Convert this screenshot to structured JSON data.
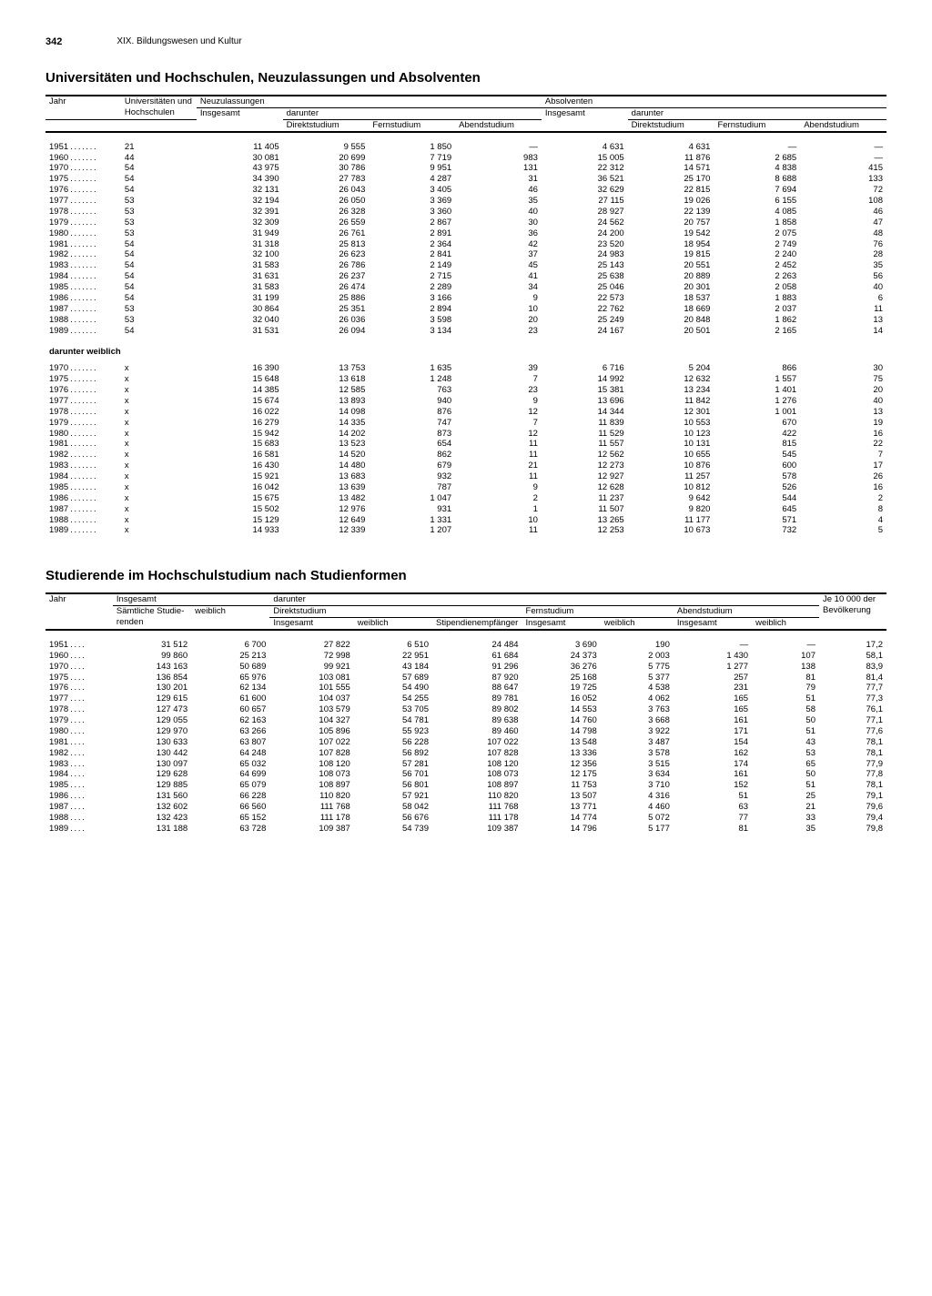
{
  "page": {
    "number": "342",
    "chapter": "XIX. Bildungswesen und Kultur"
  },
  "section1": {
    "title": "Universitäten und Hochschulen, Neuzulassungen und Absolventen",
    "headers": {
      "jahr": "Jahr",
      "uni": "Universitäten und Hoch­schulen",
      "neu": "Neuzulassungen",
      "abs": "Absolventen",
      "insg": "Insgesamt",
      "darunter": "darunter",
      "direkt": "Direkt­studium",
      "fern": "Fern­studium",
      "abend": "Abend­studium"
    },
    "sub_label": "darunter weiblich",
    "rows": [
      {
        "y": "1951",
        "u": "21",
        "ni": "11 405",
        "nd": "9 555",
        "nf": "1 850",
        "na": "—",
        "ai": "4 631",
        "ad": "4 631",
        "af": "—",
        "aa": "—"
      },
      {
        "y": "1960",
        "u": "44",
        "ni": "30 081",
        "nd": "20 699",
        "nf": "7 719",
        "na": "983",
        "ai": "15 005",
        "ad": "11 876",
        "af": "2 685",
        "aa": "—"
      },
      {
        "y": "1970",
        "u": "54",
        "ni": "43 975",
        "nd": "30 786",
        "nf": "9 951",
        "na": "131",
        "ai": "22 312",
        "ad": "14 571",
        "af": "4 838",
        "aa": "415"
      },
      {
        "y": "1975",
        "u": "54",
        "ni": "34 390",
        "nd": "27 783",
        "nf": "4 287",
        "na": "31",
        "ai": "36 521",
        "ad": "25 170",
        "af": "8 688",
        "aa": "133"
      },
      {
        "y": "1976",
        "u": "54",
        "ni": "32 131",
        "nd": "26 043",
        "nf": "3 405",
        "na": "46",
        "ai": "32 629",
        "ad": "22 815",
        "af": "7 694",
        "aa": "72"
      },
      {
        "y": "1977",
        "u": "53",
        "ni": "32 194",
        "nd": "26 050",
        "nf": "3 369",
        "na": "35",
        "ai": "27 115",
        "ad": "19 026",
        "af": "6 155",
        "aa": "108"
      },
      {
        "y": "1978",
        "u": "53",
        "ni": "32 391",
        "nd": "26 328",
        "nf": "3 360",
        "na": "40",
        "ai": "28 927",
        "ad": "22 139",
        "af": "4 085",
        "aa": "46"
      },
      {
        "y": "1979",
        "u": "53",
        "ni": "32 309",
        "nd": "26 559",
        "nf": "2 867",
        "na": "30",
        "ai": "24 562",
        "ad": "20 757",
        "af": "1 858",
        "aa": "47"
      },
      {
        "y": "1980",
        "u": "53",
        "ni": "31 949",
        "nd": "26 761",
        "nf": "2 891",
        "na": "36",
        "ai": "24 200",
        "ad": "19 542",
        "af": "2 075",
        "aa": "48"
      },
      {
        "y": "1981",
        "u": "54",
        "ni": "31 318",
        "nd": "25 813",
        "nf": "2 364",
        "na": "42",
        "ai": "23 520",
        "ad": "18 954",
        "af": "2 749",
        "aa": "76"
      },
      {
        "y": "1982",
        "u": "54",
        "ni": "32 100",
        "nd": "26 623",
        "nf": "2 841",
        "na": "37",
        "ai": "24 983",
        "ad": "19 815",
        "af": "2 240",
        "aa": "28"
      },
      {
        "y": "1983",
        "u": "54",
        "ni": "31 583",
        "nd": "26 786",
        "nf": "2 149",
        "na": "45",
        "ai": "25 143",
        "ad": "20 551",
        "af": "2 452",
        "aa": "35"
      },
      {
        "y": "1984",
        "u": "54",
        "ni": "31 631",
        "nd": "26 237",
        "nf": "2 715",
        "na": "41",
        "ai": "25 638",
        "ad": "20 889",
        "af": "2 263",
        "aa": "56"
      },
      {
        "y": "1985",
        "u": "54",
        "ni": "31 583",
        "nd": "26 474",
        "nf": "2 289",
        "na": "34",
        "ai": "25 046",
        "ad": "20 301",
        "af": "2 058",
        "aa": "40"
      },
      {
        "y": "1986",
        "u": "54",
        "ni": "31 199",
        "nd": "25 886",
        "nf": "3 166",
        "na": "9",
        "ai": "22 573",
        "ad": "18 537",
        "af": "1 883",
        "aa": "6"
      },
      {
        "y": "1987",
        "u": "53",
        "ni": "30 864",
        "nd": "25 351",
        "nf": "2 894",
        "na": "10",
        "ai": "22 762",
        "ad": "18 669",
        "af": "2 037",
        "aa": "11"
      },
      {
        "y": "1988",
        "u": "53",
        "ni": "32 040",
        "nd": "26 036",
        "nf": "3 598",
        "na": "20",
        "ai": "25 249",
        "ad": "20 848",
        "af": "1 862",
        "aa": "13"
      },
      {
        "y": "1989",
        "u": "54",
        "ni": "31 531",
        "nd": "26 094",
        "nf": "3 134",
        "na": "23",
        "ai": "24 167",
        "ad": "20 501",
        "af": "2 165",
        "aa": "14"
      }
    ],
    "rows_w": [
      {
        "y": "1970",
        "u": "x",
        "ni": "16 390",
        "nd": "13 753",
        "nf": "1 635",
        "na": "39",
        "ai": "6 716",
        "ad": "5 204",
        "af": "866",
        "aa": "30"
      },
      {
        "y": "1975",
        "u": "x",
        "ni": "15 648",
        "nd": "13 618",
        "nf": "1 248",
        "na": "7",
        "ai": "14 992",
        "ad": "12 632",
        "af": "1 557",
        "aa": "75"
      },
      {
        "y": "1976",
        "u": "x",
        "ni": "14 385",
        "nd": "12 585",
        "nf": "763",
        "na": "23",
        "ai": "15 381",
        "ad": "13 234",
        "af": "1 401",
        "aa": "20"
      },
      {
        "y": "1977",
        "u": "x",
        "ni": "15 674",
        "nd": "13 893",
        "nf": "940",
        "na": "9",
        "ai": "13 696",
        "ad": "11 842",
        "af": "1 276",
        "aa": "40"
      },
      {
        "y": "1978",
        "u": "x",
        "ni": "16 022",
        "nd": "14 098",
        "nf": "876",
        "na": "12",
        "ai": "14 344",
        "ad": "12 301",
        "af": "1 001",
        "aa": "13"
      },
      {
        "y": "1979",
        "u": "x",
        "ni": "16 279",
        "nd": "14 335",
        "nf": "747",
        "na": "7",
        "ai": "11 839",
        "ad": "10 553",
        "af": "670",
        "aa": "19"
      },
      {
        "y": "1980",
        "u": "x",
        "ni": "15 942",
        "nd": "14 202",
        "nf": "873",
        "na": "12",
        "ai": "11 529",
        "ad": "10 123",
        "af": "422",
        "aa": "16"
      },
      {
        "y": "1981",
        "u": "x",
        "ni": "15 683",
        "nd": "13 523",
        "nf": "654",
        "na": "11",
        "ai": "11 557",
        "ad": "10 131",
        "af": "815",
        "aa": "22"
      },
      {
        "y": "1982",
        "u": "x",
        "ni": "16 581",
        "nd": "14 520",
        "nf": "862",
        "na": "11",
        "ai": "12 562",
        "ad": "10 655",
        "af": "545",
        "aa": "7"
      },
      {
        "y": "1983",
        "u": "x",
        "ni": "16 430",
        "nd": "14 480",
        "nf": "679",
        "na": "21",
        "ai": "12 273",
        "ad": "10 876",
        "af": "600",
        "aa": "17"
      },
      {
        "y": "1984",
        "u": "x",
        "ni": "15 921",
        "nd": "13 683",
        "nf": "932",
        "na": "11",
        "ai": "12 927",
        "ad": "11 257",
        "af": "578",
        "aa": "26"
      },
      {
        "y": "1985",
        "u": "x",
        "ni": "16 042",
        "nd": "13 639",
        "nf": "787",
        "na": "9",
        "ai": "12 628",
        "ad": "10 812",
        "af": "526",
        "aa": "16"
      },
      {
        "y": "1986",
        "u": "x",
        "ni": "15 675",
        "nd": "13 482",
        "nf": "1 047",
        "na": "2",
        "ai": "11 237",
        "ad": "9 642",
        "af": "544",
        "aa": "2"
      },
      {
        "y": "1987",
        "u": "x",
        "ni": "15 502",
        "nd": "12 976",
        "nf": "931",
        "na": "1",
        "ai": "11 507",
        "ad": "9 820",
        "af": "645",
        "aa": "8"
      },
      {
        "y": "1988",
        "u": "x",
        "ni": "15 129",
        "nd": "12 649",
        "nf": "1 331",
        "na": "10",
        "ai": "13 265",
        "ad": "11 177",
        "af": "571",
        "aa": "4"
      },
      {
        "y": "1989",
        "u": "x",
        "ni": "14 933",
        "nd": "12 339",
        "nf": "1 207",
        "na": "11",
        "ai": "12 253",
        "ad": "10 673",
        "af": "732",
        "aa": "5"
      }
    ]
  },
  "section2": {
    "title": "Studierende im Hochschulstudium nach Studienformen",
    "headers": {
      "jahr": "Jahr",
      "insg": "Insgesamt",
      "darunter": "darunter",
      "samt": "Sämtliche Studie­renden",
      "weib": "weiblich",
      "direkt": "Direktstudium",
      "fern": "Fernstudium",
      "abend": "Abendstudium",
      "stip": "Stipendien­empfänger",
      "je10k": "Je 10 000 der Bevöl­kerung"
    },
    "rows": [
      {
        "y": "1951",
        "t": "31 512",
        "tw": "6 700",
        "di": "27 822",
        "dw": "6 510",
        "ds": "24 484",
        "fi": "3 690",
        "fw": "190",
        "ai": "—",
        "aw": "—",
        "p": "17,2"
      },
      {
        "y": "1960",
        "t": "99 860",
        "tw": "25 213",
        "di": "72 998",
        "dw": "22 951",
        "ds": "61 684",
        "fi": "24 373",
        "fw": "2 003",
        "ai": "1 430",
        "aw": "107",
        "p": "58,1"
      },
      {
        "y": "1970",
        "t": "143 163",
        "tw": "50 689",
        "di": "99 921",
        "dw": "43 184",
        "ds": "91 296",
        "fi": "36 276",
        "fw": "5 775",
        "ai": "1 277",
        "aw": "138",
        "p": "83,9"
      },
      {
        "y": "1975",
        "t": "136 854",
        "tw": "65 976",
        "di": "103 081",
        "dw": "57 689",
        "ds": "87 920",
        "fi": "25 168",
        "fw": "5 377",
        "ai": "257",
        "aw": "81",
        "p": "81,4"
      },
      {
        "y": "1976",
        "t": "130 201",
        "tw": "62 134",
        "di": "101 555",
        "dw": "54 490",
        "ds": "88 647",
        "fi": "19 725",
        "fw": "4 538",
        "ai": "231",
        "aw": "79",
        "p": "77,7"
      },
      {
        "y": "1977",
        "t": "129 615",
        "tw": "61 600",
        "di": "104 037",
        "dw": "54 255",
        "ds": "89 781",
        "fi": "16 052",
        "fw": "4 062",
        "ai": "165",
        "aw": "51",
        "p": "77,3"
      },
      {
        "y": "1978",
        "t": "127 473",
        "tw": "60 657",
        "di": "103 579",
        "dw": "53 705",
        "ds": "89 802",
        "fi": "14 553",
        "fw": "3 763",
        "ai": "165",
        "aw": "58",
        "p": "76,1"
      },
      {
        "y": "1979",
        "t": "129 055",
        "tw": "62 163",
        "di": "104 327",
        "dw": "54 781",
        "ds": "89 638",
        "fi": "14 760",
        "fw": "3 668",
        "ai": "161",
        "aw": "50",
        "p": "77,1"
      },
      {
        "y": "1980",
        "t": "129 970",
        "tw": "63 266",
        "di": "105 896",
        "dw": "55 923",
        "ds": "89 460",
        "fi": "14 798",
        "fw": "3 922",
        "ai": "171",
        "aw": "51",
        "p": "77,6"
      },
      {
        "y": "1981",
        "t": "130 633",
        "tw": "63 807",
        "di": "107 022",
        "dw": "56 228",
        "ds": "107 022",
        "fi": "13 548",
        "fw": "3 487",
        "ai": "154",
        "aw": "43",
        "p": "78,1"
      },
      {
        "y": "1982",
        "t": "130 442",
        "tw": "64 248",
        "di": "107 828",
        "dw": "56 892",
        "ds": "107 828",
        "fi": "13 336",
        "fw": "3 578",
        "ai": "162",
        "aw": "53",
        "p": "78,1"
      },
      {
        "y": "1983",
        "t": "130 097",
        "tw": "65 032",
        "di": "108 120",
        "dw": "57 281",
        "ds": "108 120",
        "fi": "12 356",
        "fw": "3 515",
        "ai": "174",
        "aw": "65",
        "p": "77,9"
      },
      {
        "y": "1984",
        "t": "129 628",
        "tw": "64 699",
        "di": "108 073",
        "dw": "56 701",
        "ds": "108 073",
        "fi": "12 175",
        "fw": "3 634",
        "ai": "161",
        "aw": "50",
        "p": "77,8"
      },
      {
        "y": "1985",
        "t": "129 885",
        "tw": "65 079",
        "di": "108 897",
        "dw": "56 801",
        "ds": "108 897",
        "fi": "11 753",
        "fw": "3 710",
        "ai": "152",
        "aw": "51",
        "p": "78,1"
      },
      {
        "y": "1986",
        "t": "131 560",
        "tw": "66 228",
        "di": "110 820",
        "dw": "57 921",
        "ds": "110 820",
        "fi": "13 507",
        "fw": "4 316",
        "ai": "51",
        "aw": "25",
        "p": "79,1"
      },
      {
        "y": "1987",
        "t": "132 602",
        "tw": "66 560",
        "di": "111 768",
        "dw": "58 042",
        "ds": "111 768",
        "fi": "13 771",
        "fw": "4 460",
        "ai": "63",
        "aw": "21",
        "p": "79,6"
      },
      {
        "y": "1988",
        "t": "132 423",
        "tw": "65 152",
        "di": "111 178",
        "dw": "56 676",
        "ds": "111 178",
        "fi": "14 774",
        "fw": "5 072",
        "ai": "77",
        "aw": "33",
        "p": "79,4"
      },
      {
        "y": "1989",
        "t": "131 188",
        "tw": "63 728",
        "di": "109 387",
        "dw": "54 739",
        "ds": "109 387",
        "fi": "14 796",
        "fw": "5 177",
        "ai": "81",
        "aw": "35",
        "p": "79,8"
      }
    ]
  }
}
